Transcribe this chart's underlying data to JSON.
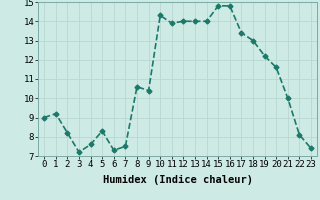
{
  "x": [
    0,
    1,
    2,
    3,
    4,
    5,
    6,
    7,
    8,
    9,
    10,
    11,
    12,
    13,
    14,
    15,
    16,
    17,
    18,
    19,
    20,
    21,
    22,
    23
  ],
  "y": [
    9.0,
    9.2,
    8.2,
    7.2,
    7.6,
    8.3,
    7.3,
    7.5,
    10.6,
    10.4,
    14.3,
    13.9,
    14.0,
    14.0,
    14.0,
    14.8,
    14.8,
    13.4,
    13.0,
    12.2,
    11.6,
    10.0,
    8.1,
    7.4
  ],
  "line_color": "#1a7a6a",
  "marker": "D",
  "marker_size": 2.5,
  "bg_color": "#ceeae4",
  "grid_color": "#b8d8d2",
  "xlabel": "Humidex (Indice chaleur)",
  "xlabel_fontsize": 7.5,
  "xlim": [
    -0.5,
    23.5
  ],
  "ylim": [
    7,
    15
  ],
  "yticks": [
    7,
    8,
    9,
    10,
    11,
    12,
    13,
    14,
    15
  ],
  "xticks": [
    0,
    1,
    2,
    3,
    4,
    5,
    6,
    7,
    8,
    9,
    10,
    11,
    12,
    13,
    14,
    15,
    16,
    17,
    18,
    19,
    20,
    21,
    22,
    23
  ],
  "tick_fontsize": 6.5,
  "line_width": 1.2
}
